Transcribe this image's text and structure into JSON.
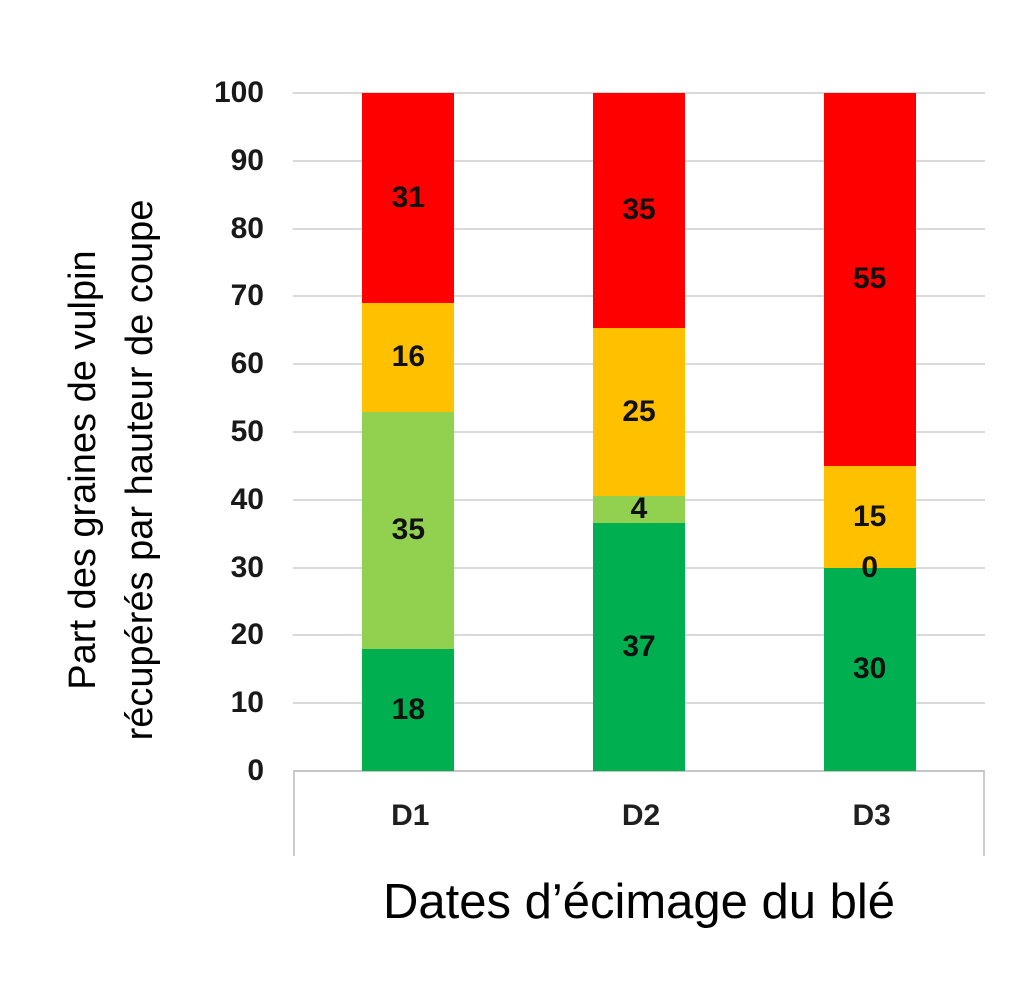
{
  "chart_data": {
    "type": "bar",
    "stacked": true,
    "title": "",
    "xlabel": "Dates d’écimage du blé",
    "ylabel": "Part des graines de vulpin récupérés par hauteur de coupe",
    "ylabel_lines": [
      "Part des graines de vulpin",
      "récupérés par hauteur de coupe"
    ],
    "categories": [
      "D1",
      "D2",
      "D3"
    ],
    "series": [
      {
        "name": "segment-vert-fonce",
        "color": "#00B050",
        "values": [
          18,
          37,
          30
        ]
      },
      {
        "name": "segment-vert-clair",
        "color": "#92D050",
        "values": [
          35,
          4,
          0
        ]
      },
      {
        "name": "segment-orange",
        "color": "#FFC000",
        "values": [
          16,
          25,
          15
        ]
      },
      {
        "name": "segment-rouge",
        "color": "#FF0000",
        "values": [
          31,
          35,
          55
        ]
      }
    ],
    "yticks": [
      0,
      10,
      20,
      30,
      40,
      50,
      60,
      70,
      80,
      90,
      100
    ],
    "ylim": [
      0,
      100
    ],
    "grid": true,
    "legend": false,
    "colors": {
      "gridline": "#dadada",
      "axis_line": "#c6c6c6",
      "label_text": "#111111"
    }
  }
}
